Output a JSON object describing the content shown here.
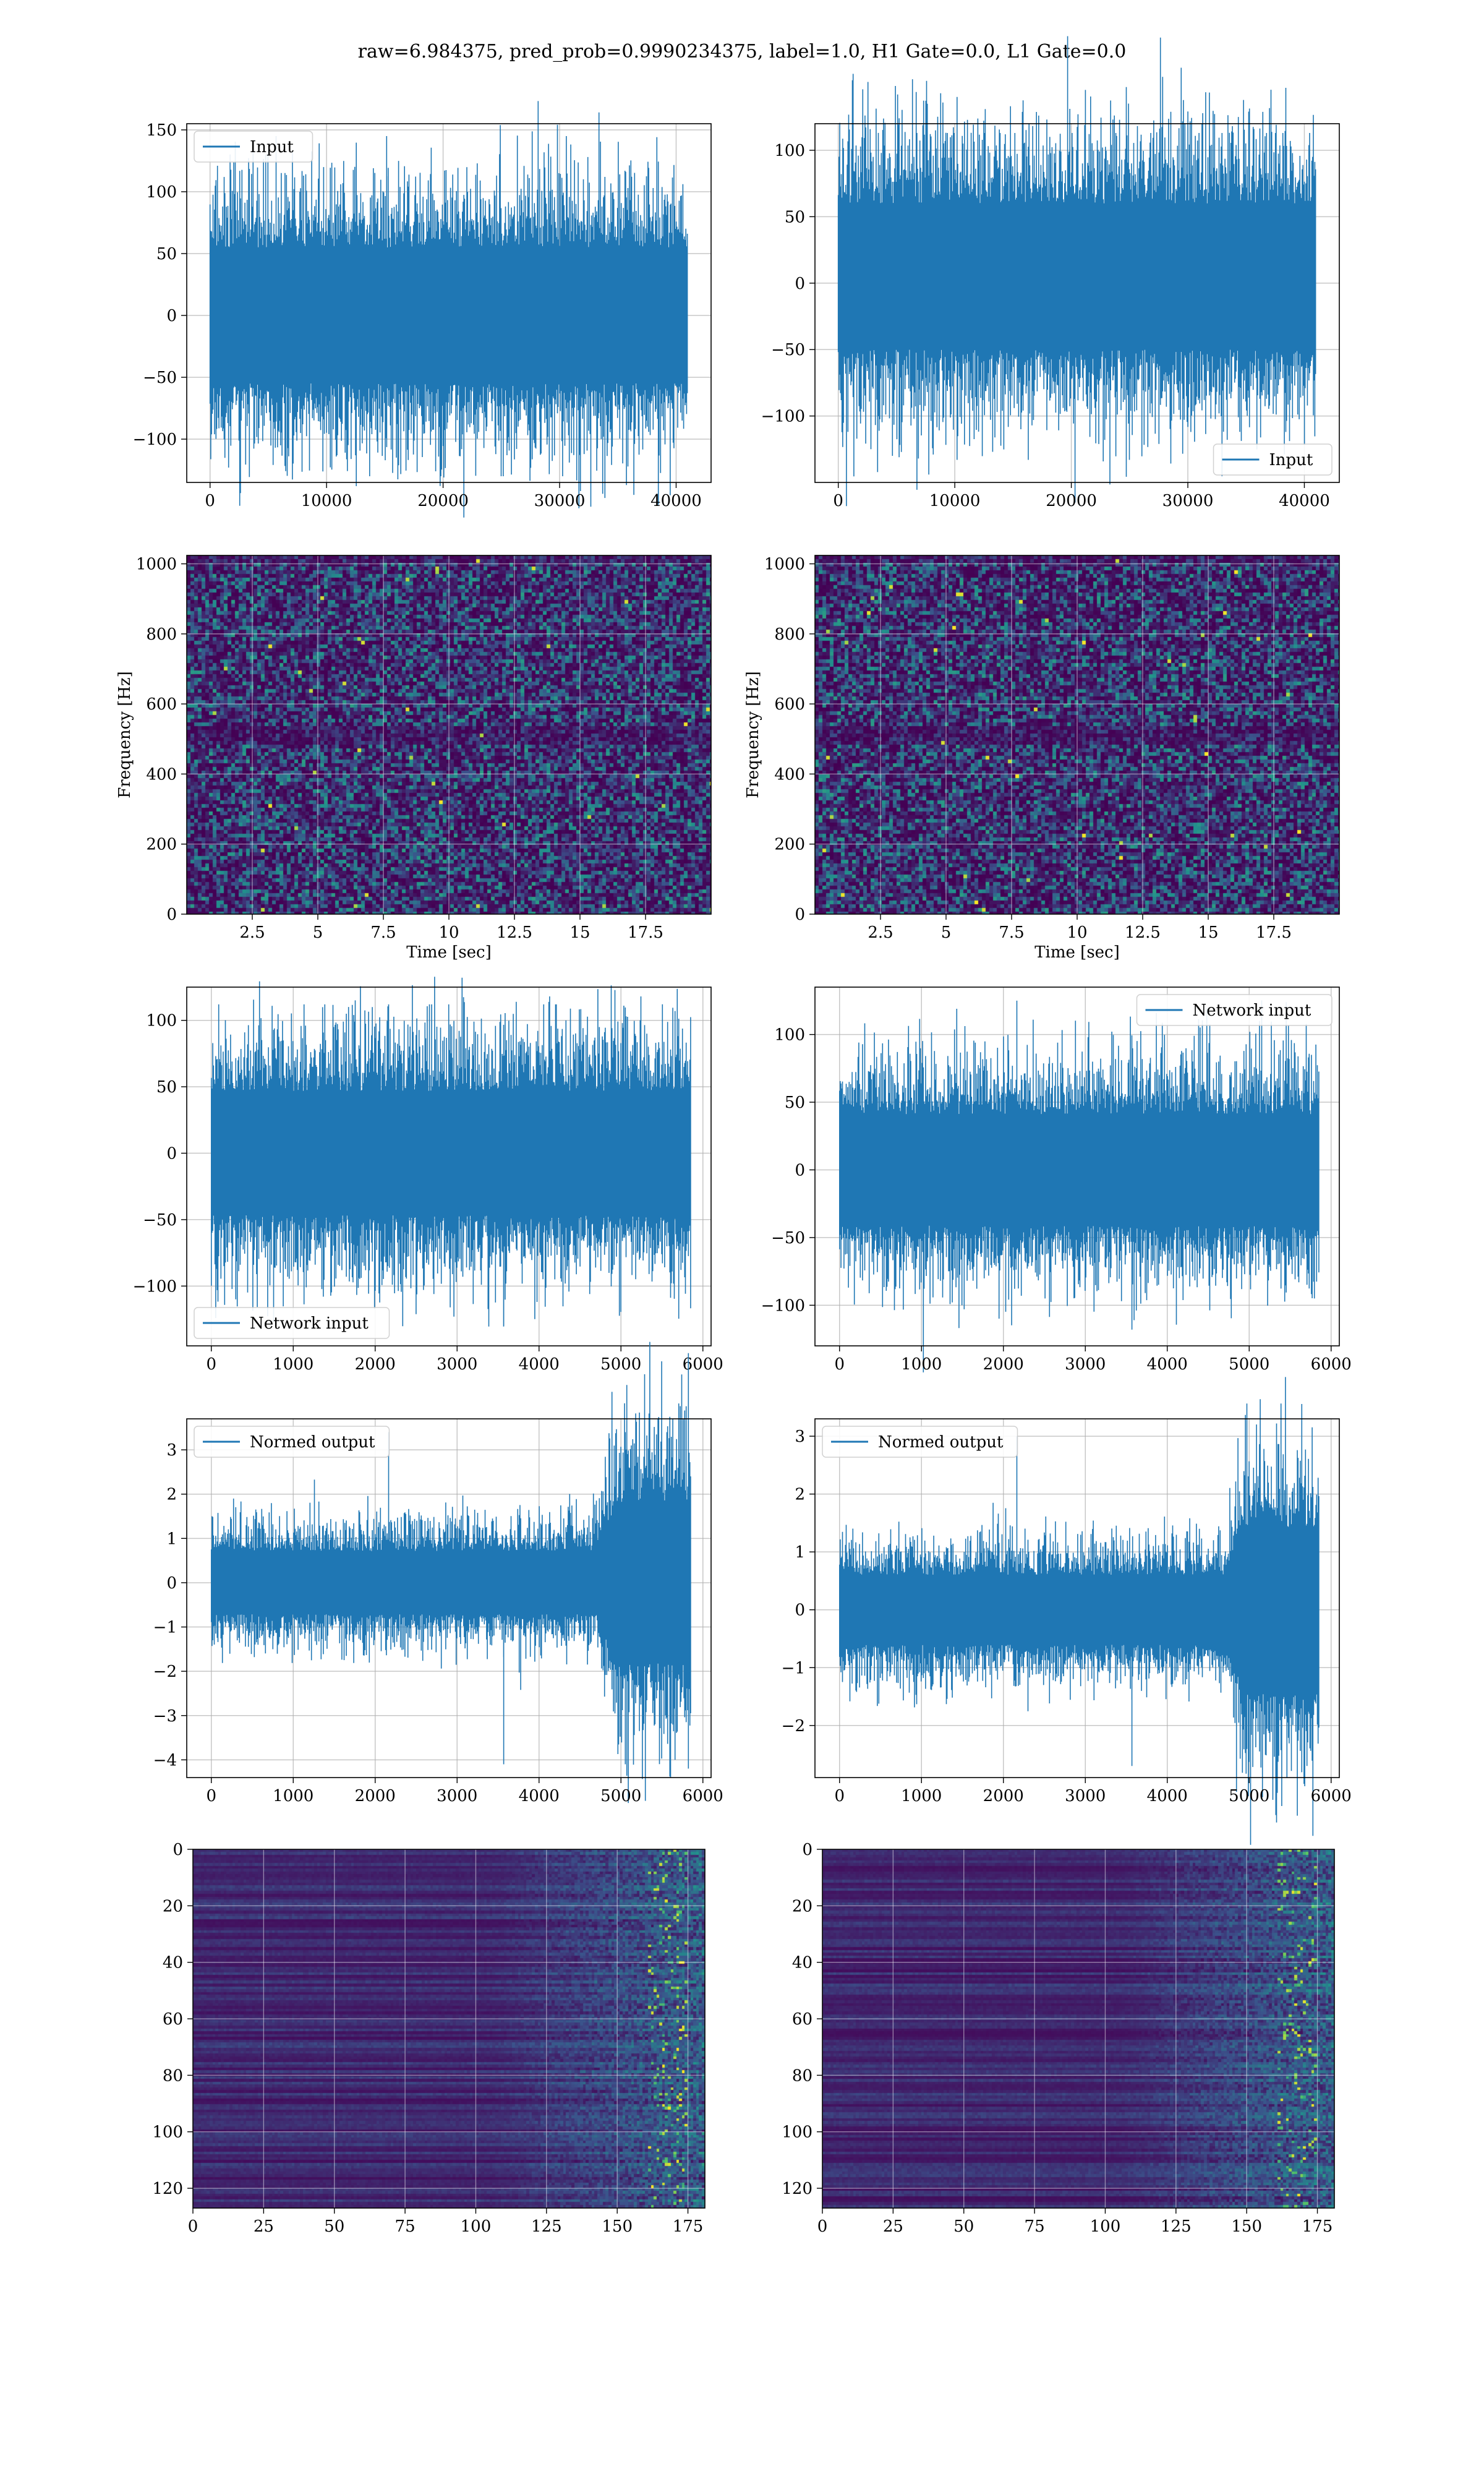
{
  "suptitle": "raw=6.984375, pred_prob=0.9990234375, label=1.0, H1 Gate=0.0, L1 Gate=0.0",
  "colors": {
    "line": "#1f77b4",
    "grid": "#b0b0b0",
    "viridis_low": "#440154",
    "viridis_mid": "#21918c",
    "viridis_high": "#fde725"
  },
  "chart_data": [
    {
      "id": "r1c1",
      "type": "line",
      "signal": "raw strain (dense noise)",
      "legend": "Input",
      "legend_loc": "upper left",
      "xlim": [
        -2000,
        43000
      ],
      "ylim": [
        -135,
        155
      ],
      "x_ticks": [
        0,
        10000,
        20000,
        30000,
        40000
      ],
      "y_ticks": [
        -100,
        -50,
        0,
        50,
        100,
        150
      ],
      "x_range": [
        0,
        40960
      ],
      "envelope": [
        -100,
        100
      ],
      "spike_extremes": [
        -130,
        145
      ],
      "core_band": [
        -45,
        50
      ]
    },
    {
      "id": "r1c2",
      "type": "line",
      "signal": "raw strain (dense noise)",
      "legend": "Input",
      "legend_loc": "lower right",
      "xlim": [
        -2000,
        43000
      ],
      "ylim": [
        -150,
        120
      ],
      "x_ticks": [
        0,
        10000,
        20000,
        30000,
        40000
      ],
      "y_ticks": [
        -100,
        -50,
        0,
        50,
        100
      ],
      "x_range": [
        0,
        40960
      ],
      "envelope": [
        -95,
        105
      ],
      "spike_extremes": [
        -133,
        113
      ],
      "core_band": [
        -40,
        45
      ]
    },
    {
      "id": "r2c1",
      "type": "heatmap",
      "colormap": "viridis",
      "xlabel": "Time [sec]",
      "ylabel": "Frequency [Hz]",
      "xlim": [
        0,
        20
      ],
      "ylim": [
        0,
        1024
      ],
      "x_ticks": [
        2.5,
        5.0,
        7.5,
        10.0,
        12.5,
        15.0,
        17.5
      ],
      "y_ticks": [
        0,
        200,
        400,
        600,
        800,
        1000
      ]
    },
    {
      "id": "r2c2",
      "type": "heatmap",
      "colormap": "viridis",
      "xlabel": "Time [sec]",
      "ylabel": "Frequency [Hz]",
      "xlim": [
        0,
        20
      ],
      "ylim": [
        0,
        1024
      ],
      "x_ticks": [
        2.5,
        5.0,
        7.5,
        10.0,
        12.5,
        15.0,
        17.5
      ],
      "y_ticks": [
        0,
        200,
        400,
        600,
        800,
        1000
      ]
    },
    {
      "id": "r3c1",
      "type": "line",
      "signal": "whitened network input",
      "legend": "Network input",
      "legend_loc": "lower left",
      "xlim": [
        -300,
        6100
      ],
      "ylim": [
        -145,
        125
      ],
      "x_ticks": [
        0,
        1000,
        2000,
        3000,
        4000,
        5000,
        6000
      ],
      "y_ticks": [
        -100,
        -50,
        0,
        50,
        100
      ],
      "x_range": [
        0,
        5850
      ],
      "envelope": [
        -85,
        85
      ],
      "spike_extremes": [
        -130,
        112
      ],
      "core_band": [
        -40,
        40
      ]
    },
    {
      "id": "r3c2",
      "type": "line",
      "signal": "whitened network input",
      "legend": "Network input",
      "legend_loc": "upper right",
      "xlim": [
        -300,
        6100
      ],
      "ylim": [
        -130,
        135
      ],
      "x_ticks": [
        0,
        1000,
        2000,
        3000,
        4000,
        5000,
        6000
      ],
      "y_ticks": [
        -100,
        -50,
        0,
        50,
        100
      ],
      "x_range": [
        0,
        5850
      ],
      "envelope": [
        -75,
        75
      ],
      "spike_extremes": [
        -118,
        125
      ],
      "core_band": [
        -35,
        35
      ]
    },
    {
      "id": "r4c1",
      "type": "line",
      "signal": "normed output (burst near end)",
      "legend": "Normed output",
      "legend_loc": "upper left",
      "xlim": [
        -300,
        6100
      ],
      "ylim": [
        -4.4,
        3.7
      ],
      "x_ticks": [
        0,
        1000,
        2000,
        3000,
        4000,
        5000,
        6000
      ],
      "y_ticks": [
        -4,
        -3,
        -2,
        -1,
        0,
        1,
        2,
        3
      ],
      "x_range": [
        0,
        5850
      ],
      "envelope": [
        -1.3,
        1.3
      ],
      "burst_region": [
        4700,
        5850
      ],
      "burst_envelope": [
        -3.3,
        3.3
      ],
      "spike_extremes": [
        -4.1,
        3.4
      ]
    },
    {
      "id": "r4c2",
      "type": "line",
      "signal": "normed output (burst near end)",
      "legend": "Normed output",
      "legend_loc": "upper left",
      "xlim": [
        -300,
        6100
      ],
      "ylim": [
        -2.9,
        3.3
      ],
      "x_ticks": [
        0,
        1000,
        2000,
        3000,
        4000,
        5000,
        6000
      ],
      "y_ticks": [
        -2,
        -1,
        0,
        1,
        2,
        3
      ],
      "x_range": [
        0,
        5850
      ],
      "envelope": [
        -1.1,
        1.1
      ],
      "burst_region": [
        4700,
        5850
      ],
      "burst_envelope": [
        -2.5,
        2.7
      ],
      "spike_extremes": [
        -2.7,
        3.0
      ]
    },
    {
      "id": "r5c1",
      "type": "heatmap",
      "colormap": "viridis",
      "xlim": [
        0,
        181
      ],
      "ylim": [
        127,
        0
      ],
      "x_ticks": [
        0,
        25,
        50,
        75,
        100,
        125,
        150,
        175
      ],
      "y_ticks": [
        0,
        20,
        40,
        60,
        80,
        100,
        120
      ]
    },
    {
      "id": "r5c2",
      "type": "heatmap",
      "colormap": "viridis",
      "xlim": [
        0,
        181
      ],
      "ylim": [
        127,
        0
      ],
      "x_ticks": [
        0,
        25,
        50,
        75,
        100,
        125,
        150,
        175
      ],
      "y_ticks": [
        0,
        20,
        40,
        60,
        80,
        100,
        120
      ]
    }
  ]
}
